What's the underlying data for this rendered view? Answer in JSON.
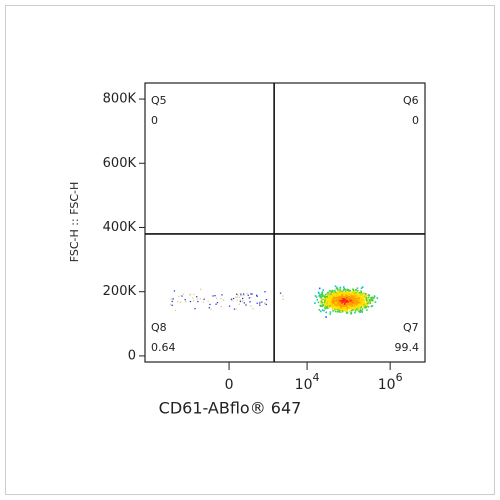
{
  "chart_data": {
    "type": "scatter",
    "x_label": "CD61-ABflo® 647",
    "y_label": "FSC-H :: FSC-H",
    "xscale": "biexponential",
    "xlim": [
      -14000,
      6900000
    ],
    "xticks": [
      0,
      {
        "value": 10000,
        "label": "10",
        "exponent": "4"
      },
      {
        "value": 1000000,
        "label": "10",
        "exponent": "6"
      }
    ],
    "ylim": [
      -19000,
      850000
    ],
    "yticks": [
      0,
      {
        "value": 200000,
        "label": "200K"
      },
      {
        "value": 400000,
        "label": "400K"
      },
      {
        "value": 600000,
        "label": "600K"
      },
      {
        "value": 800000,
        "label": "800K"
      }
    ],
    "gate": {
      "x": 1600,
      "y": 380000
    },
    "quadrants": [
      {
        "name": "Q5",
        "value": 0,
        "corner": "top-left"
      },
      {
        "name": "Q6",
        "value": 0,
        "corner": "top-right"
      },
      {
        "name": "Q7",
        "value": 99.4,
        "corner": "bottom-right"
      },
      {
        "name": "Q8",
        "value": 0.64,
        "corner": "bottom-left"
      }
    ]
  }
}
